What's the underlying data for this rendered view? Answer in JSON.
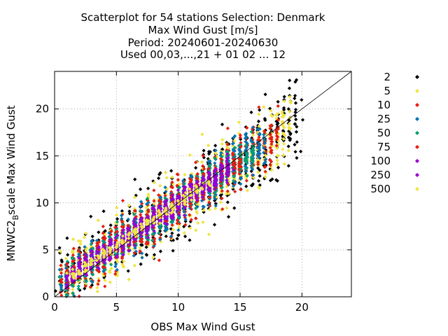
{
  "chart_data": {
    "type": "scatter",
    "title_lines": [
      "Scatterplot for   54 stations Selection: Denmark",
      "Max Wind Gust [m/s]",
      "Period: 20240601-20240630",
      "Used 00,03,...,21 + 01 02 ... 12"
    ],
    "xlabel": "OBS Max Wind Gust",
    "ylabel_main": "MNWC2",
    "ylabel_sub": "B",
    "ylabel_tail": "scale Max Wind Gust",
    "xlim": [
      0,
      24
    ],
    "ylim": [
      0,
      24
    ],
    "x_ticks": [
      0,
      5,
      10,
      15,
      20
    ],
    "y_ticks": [
      0,
      5,
      10,
      15,
      20
    ],
    "grid": true,
    "diagonal": true,
    "legend_position": "right",
    "series": [
      {
        "name": "2",
        "color": "#000000",
        "spread": 3.2
      },
      {
        "name": "5",
        "color": "#f0e442",
        "spread": 2.6
      },
      {
        "name": "10",
        "color": "#e51e10",
        "spread": 2.1
      },
      {
        "name": "25",
        "color": "#0072b2",
        "spread": 1.7
      },
      {
        "name": "50",
        "color": "#009e73",
        "spread": 1.35
      },
      {
        "name": "75",
        "color": "#e51e10",
        "spread": 1.1
      },
      {
        "name": "100",
        "color": "#9400d3",
        "spread": 0.9
      },
      {
        "name": "250",
        "color": "#9400d3",
        "spread": 0.6
      },
      {
        "name": "500",
        "color": "#f0e442",
        "spread": 0.35
      }
    ]
  }
}
